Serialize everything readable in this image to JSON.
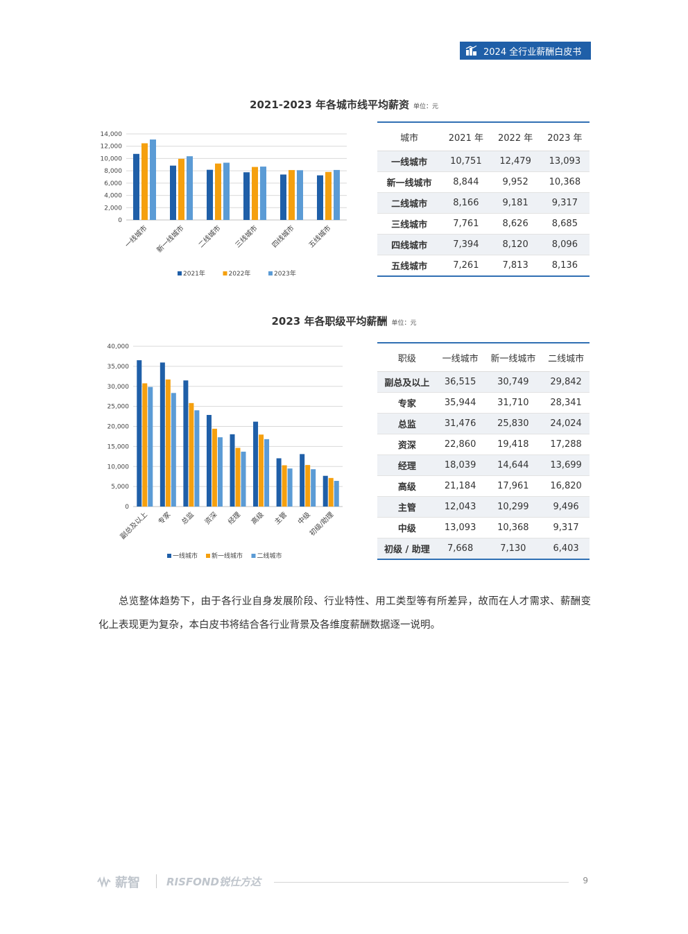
{
  "header": {
    "badge_text": "2024 全行业薪酬白皮书",
    "icon": "building-chart-icon"
  },
  "section1": {
    "title": "2021-2023 年各城市线平均薪资",
    "unit": "单位：元",
    "table": {
      "columns": [
        "城市",
        "2021 年",
        "2022 年",
        "2023 年"
      ],
      "rows": [
        [
          "一线城市",
          "10,751",
          "12,479",
          "13,093"
        ],
        [
          "新一线城市",
          "8,844",
          "9,952",
          "10,368"
        ],
        [
          "二线城市",
          "8,166",
          "9,181",
          "9,317"
        ],
        [
          "三线城市",
          "7,761",
          "8,626",
          "8,685"
        ],
        [
          "四线城市",
          "7,394",
          "8,120",
          "8,096"
        ],
        [
          "五线城市",
          "7,261",
          "7,813",
          "8,136"
        ]
      ]
    }
  },
  "section2": {
    "title": "2023 年各职级平均薪酬",
    "unit": "单位：元",
    "table": {
      "columns": [
        "职级",
        "一线城市",
        "新一线城市",
        "二线城市"
      ],
      "rows": [
        [
          "副总及以上",
          "36,515",
          "30,749",
          "29,842"
        ],
        [
          "专家",
          "35,944",
          "31,710",
          "28,341"
        ],
        [
          "总监",
          "31,476",
          "25,830",
          "24,024"
        ],
        [
          "资深",
          "22,860",
          "19,418",
          "17,288"
        ],
        [
          "经理",
          "18,039",
          "14,644",
          "13,699"
        ],
        [
          "高级",
          "21,184",
          "17,961",
          "16,820"
        ],
        [
          "主管",
          "12,043",
          "10,299",
          "9,496"
        ],
        [
          "中级",
          "13,093",
          "10,368",
          "9,317"
        ],
        [
          "初级 / 助理",
          "7,668",
          "7,130",
          "6,403"
        ]
      ]
    }
  },
  "paragraph": "总览整体趋势下，由于各行业自身发展阶段、行业特性、用工类型等有所差异，故而在人才需求、薪酬变化上表现更为复杂，本白皮书将结合各行业背景及各维度薪酬数据逐一说明。",
  "footer": {
    "logo1": "薪智",
    "logo2": "RISFOND锐仕方达",
    "page": "9"
  },
  "colors": {
    "series1": "#1f5fa8",
    "series2": "#f5a00f",
    "series3": "#5b9bd5",
    "accent": "#1f5fa8"
  },
  "chart_data": [
    {
      "type": "bar",
      "categories": [
        "一线城市",
        "新一线城市",
        "二线城市",
        "三线城市",
        "四线城市",
        "五线城市"
      ],
      "series": [
        {
          "name": "2021年",
          "values": [
            10751,
            8844,
            8166,
            7761,
            7394,
            7261
          ]
        },
        {
          "name": "2022年",
          "values": [
            12479,
            9952,
            9181,
            8626,
            8120,
            7813
          ]
        },
        {
          "name": "2023年",
          "values": [
            13093,
            10368,
            9317,
            8685,
            8096,
            8136
          ]
        }
      ],
      "yticks": [
        "0",
        "2,000",
        "4,000",
        "6,000",
        "8,000",
        "10,000",
        "12,000",
        "14,000"
      ],
      "ylim": [
        0,
        14000
      ],
      "grid": true,
      "legend": "bottom"
    },
    {
      "type": "bar",
      "categories": [
        "副总及以上",
        "专家",
        "总监",
        "资深",
        "经理",
        "高级",
        "主管",
        "中级",
        "初级/助理"
      ],
      "series": [
        {
          "name": "一线城市",
          "values": [
            36515,
            35944,
            31476,
            22860,
            18039,
            21184,
            12043,
            13093,
            7668
          ]
        },
        {
          "name": "新一线城市",
          "values": [
            30749,
            31710,
            25830,
            19418,
            14644,
            17961,
            10299,
            10368,
            7130
          ]
        },
        {
          "name": "二线城市",
          "values": [
            29842,
            28341,
            24024,
            17288,
            13699,
            16820,
            9496,
            9317,
            6403
          ]
        }
      ],
      "yticks": [
        "0",
        "5,000",
        "10,000",
        "15,000",
        "20,000",
        "25,000",
        "30,000",
        "35,000",
        "40,000"
      ],
      "ylim": [
        0,
        40000
      ],
      "grid": true,
      "legend": "bottom"
    }
  ]
}
